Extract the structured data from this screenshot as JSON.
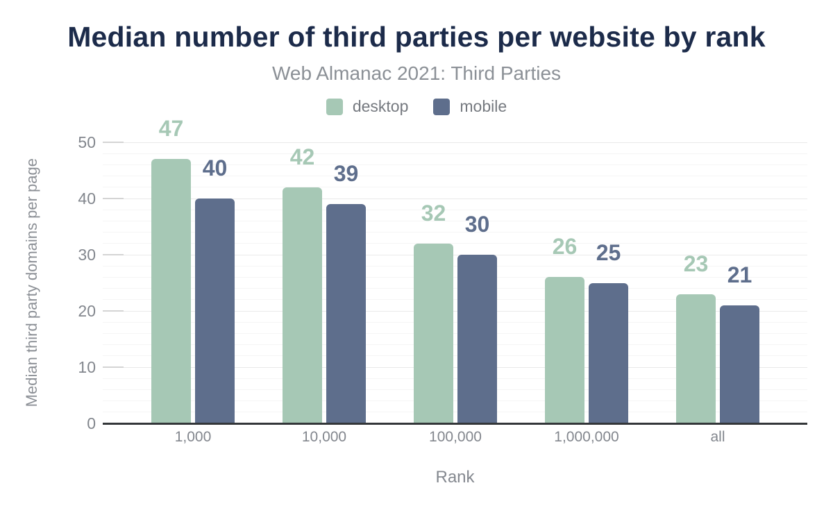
{
  "chart_data": {
    "type": "bar",
    "title": "Median number of third parties per website by rank",
    "subtitle": "Web Almanac 2021: Third Parties",
    "xlabel": "Rank",
    "ylabel": "Median third party domains per page",
    "categories": [
      "1,000",
      "10,000",
      "100,000",
      "1,000,000",
      "all"
    ],
    "series": [
      {
        "name": "desktop",
        "color": "#a6c8b5",
        "values": [
          47,
          42,
          32,
          26,
          23
        ]
      },
      {
        "name": "mobile",
        "color": "#5e6e8c",
        "values": [
          40,
          39,
          30,
          25,
          21
        ]
      }
    ],
    "ylim": [
      0,
      50
    ],
    "yticks": [
      0,
      10,
      20,
      30,
      40,
      50
    ],
    "minor_grid_step": 2,
    "grid": "horizontal",
    "legend_position": "top-center",
    "value_labels": "above bars, colored per series"
  },
  "colors": {
    "title": "#1c2b4a",
    "subtitle": "#8b9096",
    "legend_text": "#75797f",
    "desktop": "#a6c8b5",
    "mobile": "#5e6e8c",
    "axis_line": "#333639",
    "tick_labels": "#82868d",
    "grid_minor": "#f5f5f5",
    "grid_major": "#e9e9e9",
    "background": "#ffffff"
  }
}
